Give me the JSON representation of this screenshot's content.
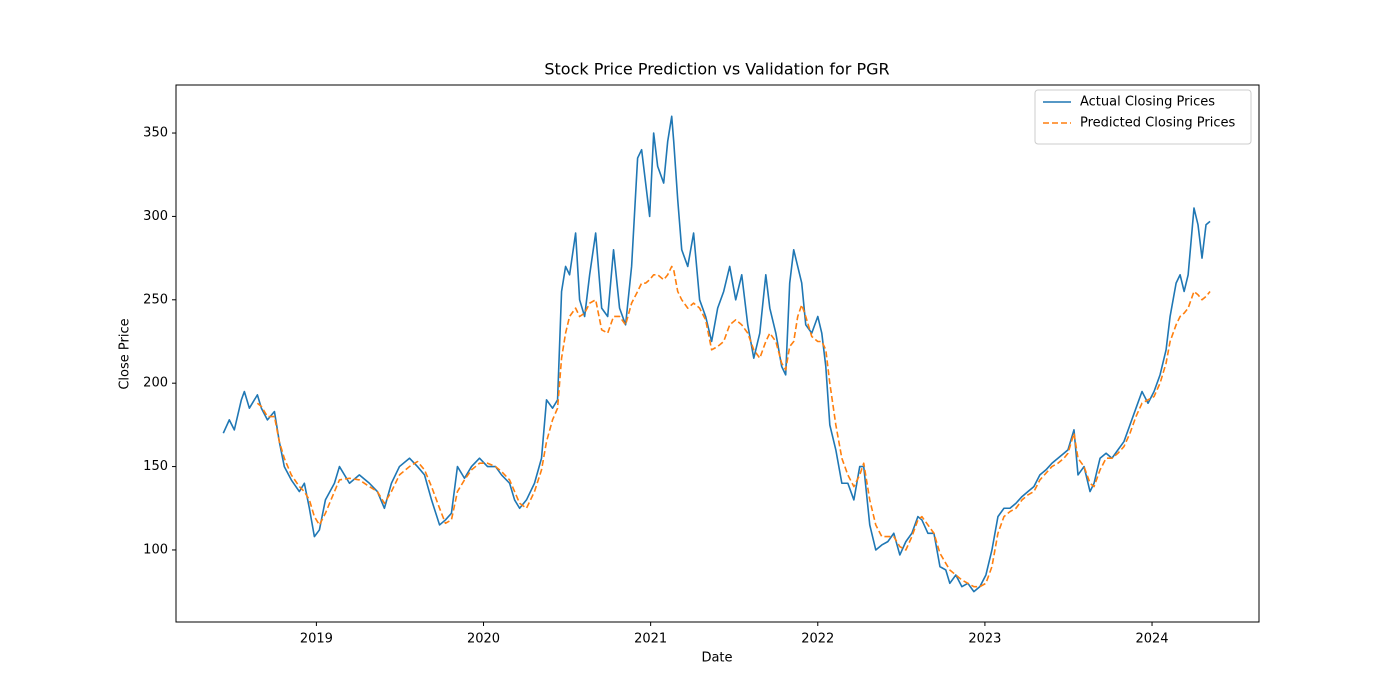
{
  "chart_data": {
    "type": "line",
    "title": "Stock Price Prediction vs Validation for PGR",
    "x_label": "Date",
    "y_label": "Close Price",
    "x": [
      2018.443,
      2018.479,
      2018.509,
      2018.551,
      2018.569,
      2018.599,
      2018.647,
      2018.671,
      2018.707,
      2018.749,
      2018.778,
      2018.808,
      2018.85,
      2018.898,
      2018.928,
      2018.958,
      2018.988,
      2019.018,
      2019.054,
      2019.108,
      2019.138,
      2019.198,
      2019.257,
      2019.317,
      2019.365,
      2019.407,
      2019.449,
      2019.497,
      2019.557,
      2019.605,
      2019.647,
      2019.689,
      2019.737,
      2019.772,
      2019.808,
      2019.844,
      2019.886,
      2019.928,
      2019.976,
      2020.024,
      2020.072,
      2020.108,
      2020.156,
      2020.186,
      2020.216,
      2020.257,
      2020.305,
      2020.347,
      2020.377,
      2020.413,
      2020.443,
      2020.467,
      2020.491,
      2020.515,
      2020.551,
      2020.575,
      2020.605,
      2020.635,
      2020.671,
      2020.707,
      2020.743,
      2020.778,
      2020.814,
      2020.85,
      2020.886,
      2020.922,
      2020.946,
      2020.97,
      2020.994,
      2021.018,
      2021.042,
      2021.078,
      2021.102,
      2021.126,
      2021.138,
      2021.162,
      2021.186,
      2021.222,
      2021.257,
      2021.293,
      2021.329,
      2021.365,
      2021.401,
      2021.437,
      2021.473,
      2021.509,
      2021.545,
      2021.581,
      2021.617,
      2021.653,
      2021.689,
      2021.713,
      2021.749,
      2021.784,
      2021.808,
      2021.832,
      2021.856,
      2021.88,
      2021.904,
      2021.928,
      2021.964,
      2022,
      2022.024,
      2022.048,
      2022.072,
      2022.108,
      2022.144,
      2022.18,
      2022.216,
      2022.251,
      2022.275,
      2022.311,
      2022.347,
      2022.383,
      2022.419,
      2022.455,
      2022.491,
      2022.527,
      2022.563,
      2022.599,
      2022.623,
      2022.659,
      2022.695,
      2022.731,
      2022.766,
      2022.79,
      2022.826,
      2022.862,
      2022.898,
      2022.934,
      2022.97,
      2023.006,
      2023.042,
      2023.078,
      2023.114,
      2023.15,
      2023.186,
      2023.222,
      2023.257,
      2023.293,
      2023.329,
      2023.365,
      2023.401,
      2023.437,
      2023.473,
      2023.497,
      2023.533,
      2023.557,
      2023.593,
      2023.629,
      2023.653,
      2023.689,
      2023.725,
      2023.76,
      2023.796,
      2023.832,
      2023.868,
      2023.904,
      2023.94,
      2023.976,
      2024.012,
      2024.048,
      2024.084,
      2024.108,
      2024.144,
      2024.168,
      2024.192,
      2024.216,
      2024.251,
      2024.275,
      2024.299,
      2024.323,
      2024.347
    ],
    "series": [
      {
        "name": "Actual Closing Prices",
        "color": "#1f77b4",
        "linestyle": "solid",
        "values": [
          170,
          178,
          172,
          190,
          195,
          185,
          193,
          185,
          178,
          183,
          165,
          150,
          142,
          135,
          140,
          125,
          108,
          112,
          130,
          140,
          150,
          140,
          145,
          140,
          135,
          125,
          140,
          150,
          155,
          150,
          145,
          130,
          115,
          118,
          122,
          150,
          143,
          150,
          155,
          150,
          150,
          145,
          140,
          130,
          125,
          130,
          140,
          155,
          190,
          185,
          190,
          255,
          270,
          265,
          290,
          250,
          240,
          265,
          290,
          245,
          240,
          280,
          245,
          235,
          270,
          335,
          340,
          320,
          300,
          350,
          330,
          320,
          345,
          360,
          345,
          310,
          280,
          270,
          290,
          250,
          240,
          225,
          245,
          255,
          270,
          250,
          265,
          235,
          215,
          230,
          265,
          245,
          230,
          210,
          205,
          260,
          280,
          270,
          260,
          235,
          230,
          240,
          230,
          210,
          175,
          160,
          140,
          140,
          130,
          150,
          150,
          115,
          100,
          103,
          105,
          110,
          97,
          105,
          110,
          120,
          118,
          110,
          110,
          90,
          88,
          80,
          85,
          78,
          80,
          75,
          78,
          85,
          100,
          120,
          125,
          125,
          128,
          132,
          135,
          138,
          145,
          148,
          152,
          155,
          158,
          160,
          172,
          145,
          150,
          135,
          140,
          155,
          158,
          155,
          160,
          165,
          175,
          185,
          195,
          188,
          195,
          205,
          220,
          240,
          260,
          265,
          255,
          265,
          305,
          295,
          275,
          295,
          297
        ]
      },
      {
        "name": "Predicted Closing Prices",
        "color": "#ff7f0e",
        "linestyle": "dashed",
        "values": [
          null,
          null,
          null,
          null,
          null,
          null,
          188,
          186,
          180,
          180,
          165,
          155,
          145,
          138,
          135,
          130,
          120,
          115,
          122,
          135,
          142,
          143,
          142,
          138,
          135,
          128,
          135,
          145,
          150,
          153,
          148,
          138,
          125,
          116,
          118,
          135,
          142,
          148,
          152,
          152,
          150,
          147,
          142,
          135,
          128,
          125,
          135,
          148,
          165,
          178,
          185,
          215,
          230,
          240,
          245,
          240,
          242,
          248,
          250,
          232,
          230,
          240,
          240,
          235,
          248,
          255,
          260,
          260,
          262,
          265,
          265,
          262,
          265,
          270,
          268,
          255,
          250,
          245,
          248,
          245,
          238,
          220,
          222,
          225,
          235,
          238,
          235,
          230,
          220,
          215,
          225,
          230,
          225,
          212,
          208,
          222,
          225,
          240,
          247,
          240,
          228,
          225,
          225,
          220,
          200,
          175,
          155,
          145,
          138,
          145,
          152,
          130,
          115,
          108,
          108,
          108,
          102,
          100,
          108,
          118,
          120,
          115,
          110,
          98,
          92,
          88,
          85,
          82,
          80,
          78,
          78,
          80,
          90,
          110,
          120,
          123,
          125,
          130,
          133,
          135,
          142,
          146,
          150,
          152,
          155,
          158,
          170,
          155,
          150,
          140,
          138,
          148,
          155,
          155,
          158,
          162,
          170,
          180,
          188,
          190,
          192,
          200,
          212,
          225,
          235,
          240,
          242,
          245,
          255,
          253,
          250,
          252,
          255
        ]
      }
    ],
    "xlim": [
      2018.16,
      2024.64
    ],
    "xticks": [
      2019,
      2020,
      2021,
      2022,
      2023,
      2024
    ],
    "ylim": [
      56.8,
      378.8
    ],
    "yticks": [
      100,
      150,
      200,
      250,
      300,
      350
    ],
    "grid": false,
    "legend": "upper right"
  }
}
